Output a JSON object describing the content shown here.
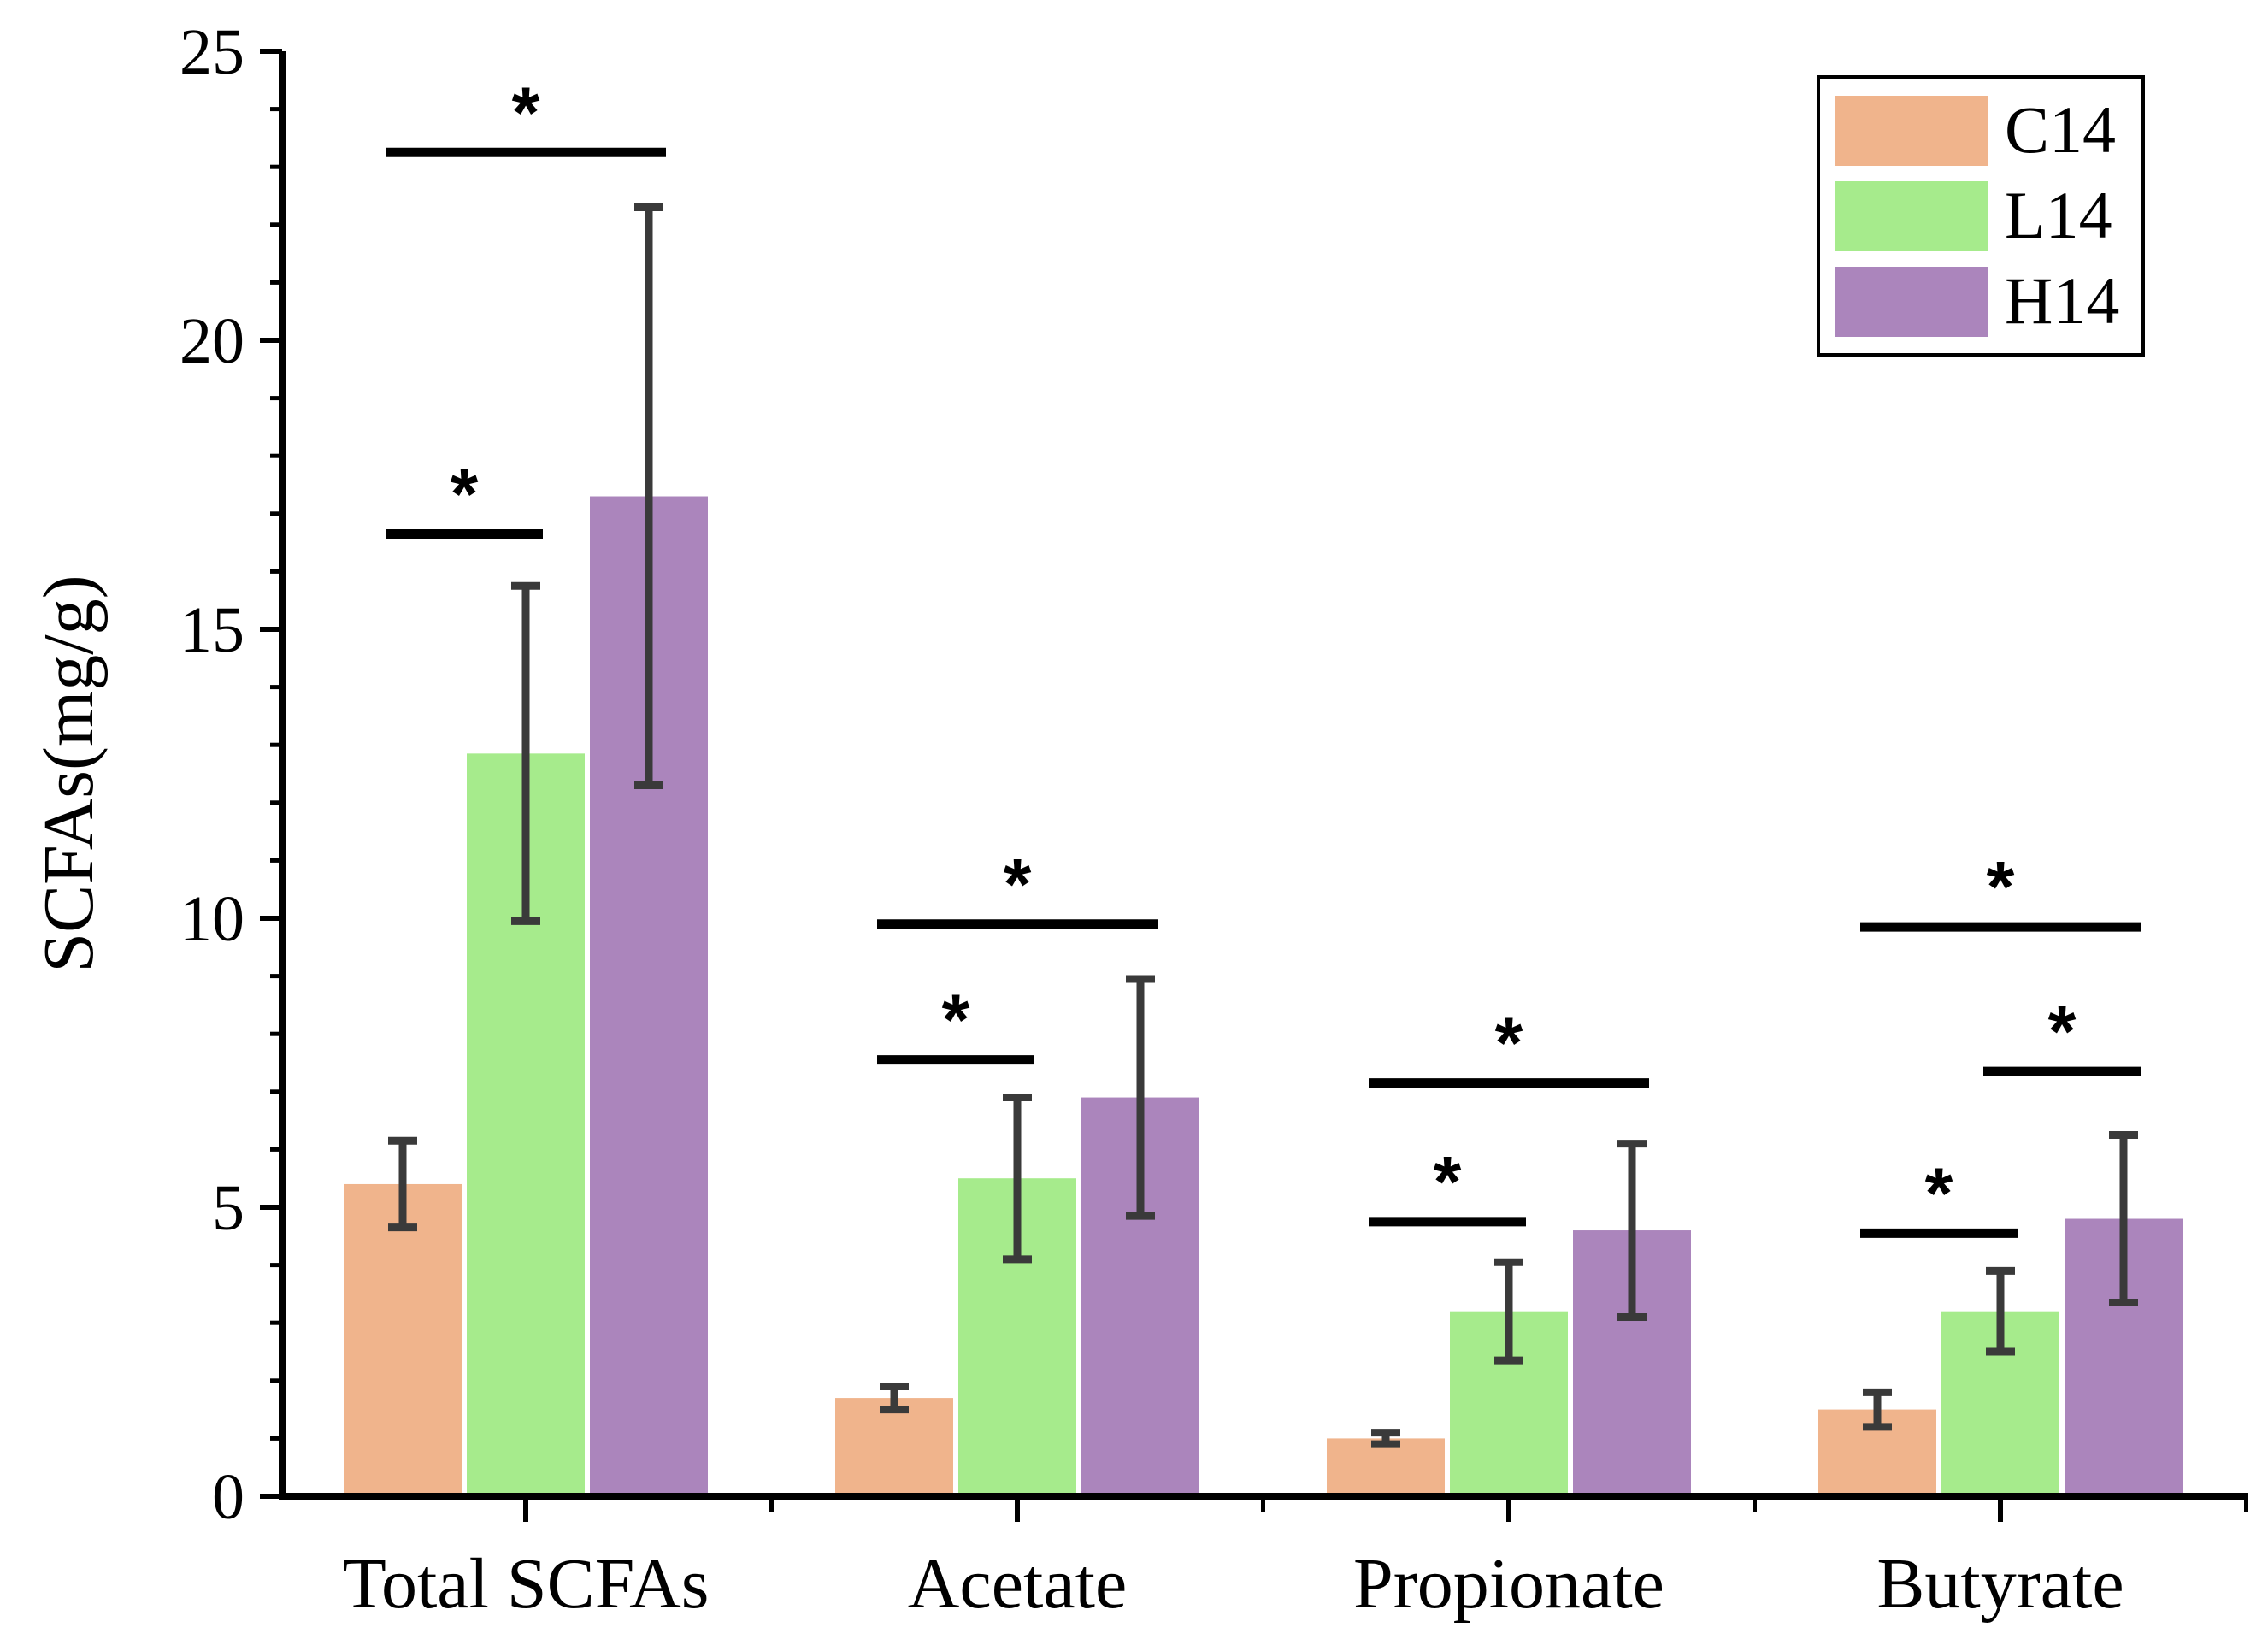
{
  "chart_data": {
    "type": "bar",
    "title": "",
    "xlabel": "",
    "ylabel": "SCFAs(mg/g)",
    "ylim": [
      0,
      25
    ],
    "yticks": [
      0,
      5,
      10,
      15,
      20,
      25
    ],
    "y_minor_step": 1,
    "grid": false,
    "legend_position": "top-right",
    "categories": [
      "Total SCFAs",
      "Acetate",
      "Propionate",
      "Butyrate"
    ],
    "series": [
      {
        "name": "C14",
        "color": "#F0B48C",
        "values": [
          5.4,
          1.7,
          1.0,
          1.5
        ],
        "errors": [
          0.75,
          0.2,
          0.1,
          0.3
        ]
      },
      {
        "name": "L14",
        "color": "#A6EB8C",
        "values": [
          12.85,
          5.5,
          3.2,
          3.2
        ],
        "errors": [
          2.9,
          1.4,
          0.85,
          0.7
        ]
      },
      {
        "name": "H14",
        "color": "#AB85BC",
        "values": [
          17.3,
          6.9,
          4.6,
          4.8
        ],
        "errors": [
          5.0,
          2.05,
          1.5,
          1.45
        ]
      }
    ],
    "significance": [
      {
        "category": 0,
        "from_series": 0,
        "to_series": 1,
        "y": 16.65,
        "label": "*"
      },
      {
        "category": 0,
        "from_series": 0,
        "to_series": 2,
        "y": 23.25,
        "label": "*"
      },
      {
        "category": 1,
        "from_series": 0,
        "to_series": 1,
        "y": 7.55,
        "label": "*"
      },
      {
        "category": 1,
        "from_series": 0,
        "to_series": 2,
        "y": 9.9,
        "label": "*"
      },
      {
        "category": 2,
        "from_series": 0,
        "to_series": 1,
        "y": 4.75,
        "label": "*"
      },
      {
        "category": 2,
        "from_series": 0,
        "to_series": 2,
        "y": 7.15,
        "label": "*"
      },
      {
        "category": 3,
        "from_series": 0,
        "to_series": 1,
        "y": 4.55,
        "label": "*"
      },
      {
        "category": 3,
        "from_series": 1,
        "to_series": 2,
        "y": 7.35,
        "label": "*"
      },
      {
        "category": 3,
        "from_series": 0,
        "to_series": 2,
        "y": 9.85,
        "label": "*"
      }
    ]
  }
}
